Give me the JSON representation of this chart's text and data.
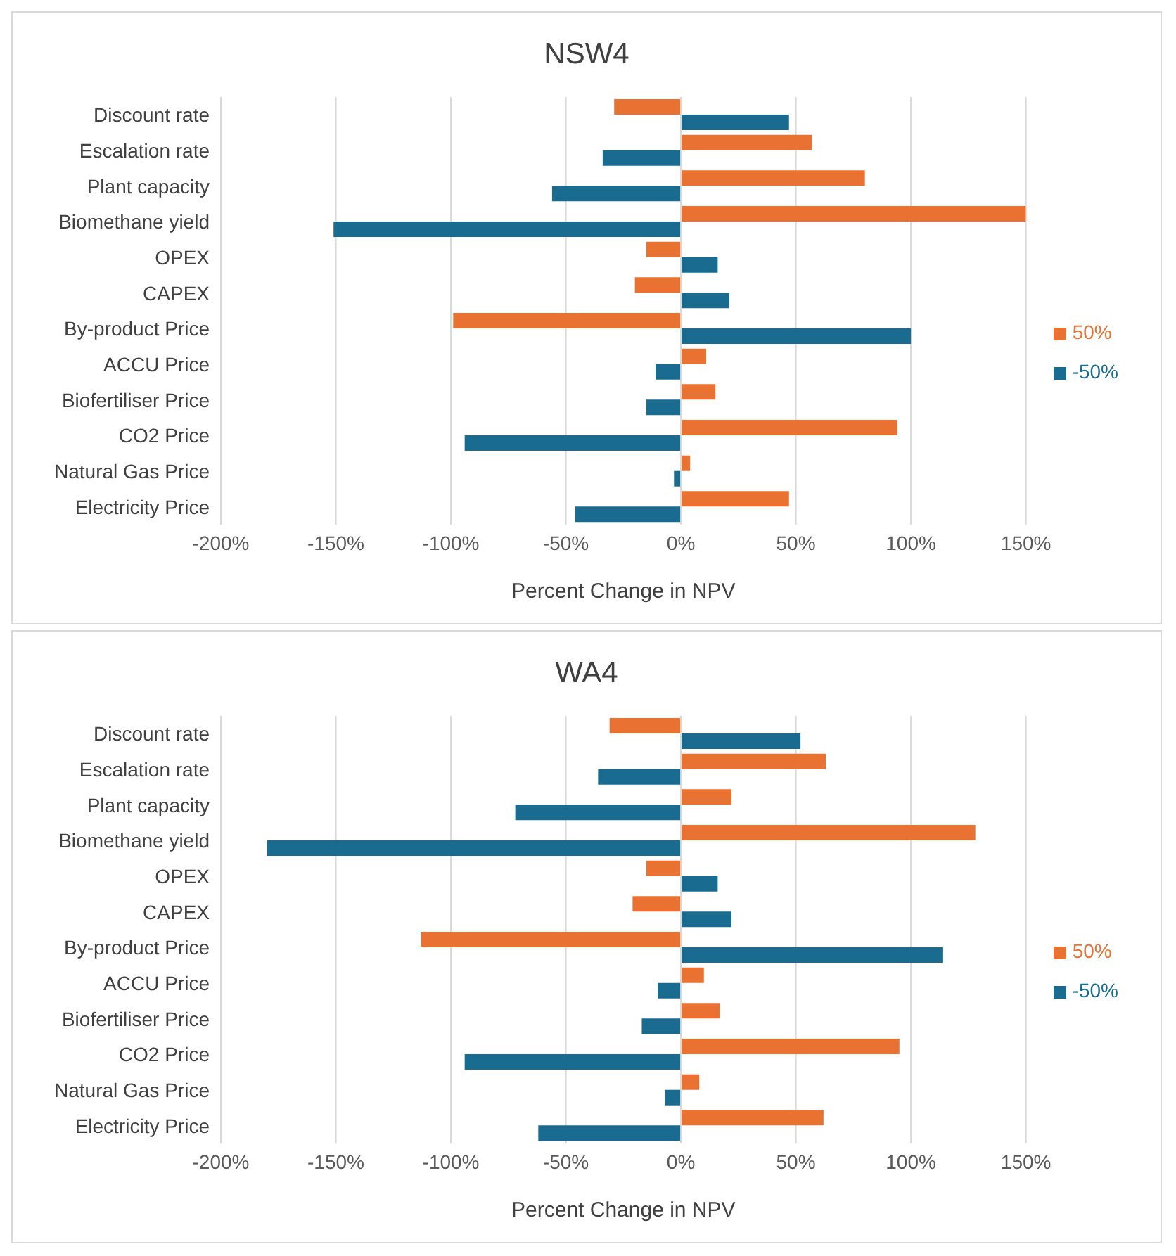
{
  "chart_data": [
    {
      "type": "bar",
      "orientation": "horizontal",
      "title": "NSW4",
      "xlabel": "Percent Change in NPV",
      "categories": [
        "Discount rate",
        "Escalation rate",
        "Plant capacity",
        "Biomethane yield",
        "OPEX",
        "CAPEX",
        "By-product Price",
        "ACCU Price",
        "Biofertiliser Price",
        "CO2 Price",
        "Natural Gas Price",
        "Electricity Price"
      ],
      "series": [
        {
          "name": "50%",
          "color": "#e97132",
          "values": [
            -29,
            57,
            80,
            150,
            -15,
            -20,
            -99,
            11,
            15,
            94,
            4,
            47
          ]
        },
        {
          "name": "-50%",
          "color": "#196b8f",
          "values": [
            47,
            -34,
            -56,
            -151,
            16,
            21,
            100,
            -11,
            -15,
            -94,
            -3,
            -46
          ]
        }
      ],
      "xlim": [
        -200,
        150
      ],
      "xticks": [
        {
          "value": -200,
          "label": "-200%"
        },
        {
          "value": -150,
          "label": "-150%"
        },
        {
          "value": -100,
          "label": "-100%"
        },
        {
          "value": -50,
          "label": "-50%"
        },
        {
          "value": 0,
          "label": "0%"
        },
        {
          "value": 50,
          "label": "50%"
        },
        {
          "value": 100,
          "label": "100%"
        },
        {
          "value": 150,
          "label": "150%"
        }
      ],
      "grid": "x",
      "legend": "right"
    },
    {
      "type": "bar",
      "orientation": "horizontal",
      "title": "WA4",
      "xlabel": "Percent Change in NPV",
      "categories": [
        "Discount rate",
        "Escalation rate",
        "Plant capacity",
        "Biomethane yield",
        "OPEX",
        "CAPEX",
        "By-product Price",
        "ACCU Price",
        "Biofertiliser Price",
        "CO2 Price",
        "Natural Gas Price",
        "Electricity Price"
      ],
      "series": [
        {
          "name": "50%",
          "color": "#e97132",
          "values": [
            -31,
            63,
            22,
            128,
            -15,
            -21,
            -113,
            10,
            17,
            95,
            8,
            62
          ]
        },
        {
          "name": "-50%",
          "color": "#196b8f",
          "values": [
            52,
            -36,
            -72,
            -180,
            16,
            22,
            114,
            -10,
            -17,
            -94,
            -7,
            -62
          ]
        }
      ],
      "xlim": [
        -200,
        150
      ],
      "xticks": [
        {
          "value": -200,
          "label": "-200%"
        },
        {
          "value": -150,
          "label": "-150%"
        },
        {
          "value": -100,
          "label": "-100%"
        },
        {
          "value": -50,
          "label": "-50%"
        },
        {
          "value": 0,
          "label": "0%"
        },
        {
          "value": 50,
          "label": "50%"
        },
        {
          "value": 100,
          "label": "100%"
        },
        {
          "value": 150,
          "label": "150%"
        }
      ],
      "grid": "x",
      "legend": "right"
    }
  ]
}
